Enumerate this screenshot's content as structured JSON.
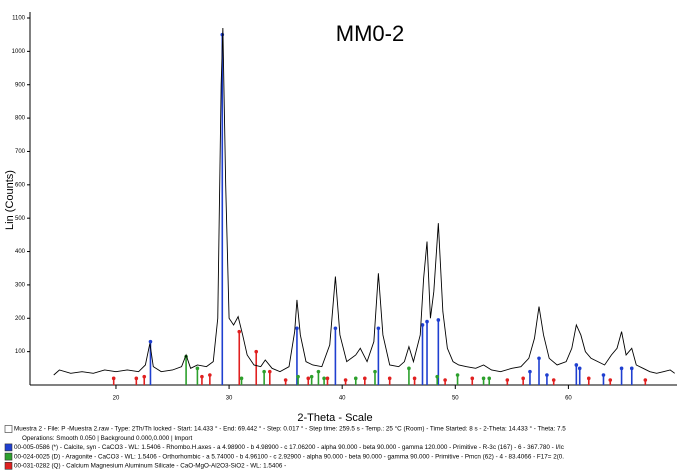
{
  "chart_data": {
    "type": "xrd",
    "title": "MM0-2",
    "x_label": "2-Theta - Scale",
    "y_label": "Lin (Counts)",
    "xlim": [
      12.4,
      69.6
    ],
    "xticks": [
      20,
      30,
      40,
      50,
      60
    ],
    "ylim": [
      0,
      1100
    ],
    "yticks": [
      100,
      200,
      300,
      400,
      500,
      600,
      700,
      800,
      900,
      1000,
      1100
    ],
    "operations": "Operations: Smooth 0.050 | Background 0.000,0.000 | Import",
    "series": [
      {
        "name": "Muestra 2 - File: P -Muestra 2.raw - Type: 2Th/Th locked - Start: 14.433 ° - End: 69.442 ° - Step: 0.017 ° - Step time: 259.5 s - Temp.: 25 °C (Room) - Time Started: 8 s - 2-Theta: 14.433 ° - Theta: 7.5",
        "color": "#000000",
        "x": [
          14.5,
          15,
          16,
          17,
          18,
          19,
          20,
          21,
          22,
          22.6,
          23.0,
          23.3,
          24,
          25,
          25.8,
          26.2,
          26.6,
          27.2,
          28,
          28.6,
          29.0,
          29.3,
          29.45,
          29.7,
          30.0,
          30.4,
          30.8,
          31.2,
          31.6,
          32.2,
          32.8,
          33.2,
          33.8,
          34.5,
          35.3,
          35.8,
          36.0,
          36.3,
          36.8,
          37.4,
          38.2,
          38.9,
          39.4,
          39.8,
          40.4,
          41.2,
          41.6,
          42.2,
          42.8,
          43.2,
          43.6,
          44.2,
          45.0,
          45.5,
          45.9,
          46.3,
          46.9,
          47.2,
          47.5,
          47.8,
          48.1,
          48.5,
          48.9,
          49.3,
          49.8,
          50.3,
          51.0,
          51.8,
          52.5,
          53.2,
          54.0,
          55.0,
          55.8,
          56.5,
          57.0,
          57.4,
          57.8,
          58.3,
          59.0,
          59.8,
          60.3,
          60.7,
          61.1,
          61.5,
          62.0,
          62.6,
          63.2,
          63.8,
          64.3,
          64.7,
          65.1,
          65.6,
          66.0,
          66.6,
          67.2,
          67.8,
          68.4,
          69.0,
          69.4
        ],
        "values": [
          30,
          45,
          35,
          40,
          35,
          45,
          40,
          45,
          40,
          60,
          125,
          55,
          40,
          45,
          55,
          90,
          50,
          60,
          55,
          70,
          200,
          900,
          1070,
          600,
          200,
          180,
          205,
          150,
          90,
          60,
          55,
          75,
          50,
          40,
          55,
          160,
          255,
          150,
          70,
          60,
          55,
          120,
          325,
          150,
          70,
          90,
          110,
          70,
          130,
          335,
          150,
          60,
          55,
          70,
          115,
          70,
          150,
          320,
          430,
          200,
          280,
          485,
          220,
          110,
          70,
          60,
          55,
          50,
          60,
          45,
          40,
          50,
          55,
          80,
          140,
          235,
          150,
          80,
          60,
          70,
          110,
          180,
          150,
          100,
          80,
          70,
          60,
          90,
          110,
          160,
          90,
          110,
          60,
          50,
          40,
          35,
          40,
          45,
          35
        ]
      }
    ],
    "reference_patterns": [
      {
        "name": "00-005-0586 (*) - Calcite, syn - CaCO3 - WL: 1.5406 - Rhombo.H.axes - a 4.98900 - b 4.98900 - c 17.06200 - alpha 90.000 - beta 90.000 - gamma 120.000 - Primitive - R-3c (167) - 6 - 367.780 - I/Ic",
        "color": "#1f3fd0",
        "x": [
          23.05,
          29.4,
          36.0,
          39.4,
          43.2,
          47.1,
          47.5,
          48.5,
          56.6,
          57.4,
          58.1,
          60.7,
          61.0,
          63.1,
          64.7,
          65.6
        ],
        "values": [
          130,
          1050,
          170,
          170,
          170,
          180,
          190,
          195,
          40,
          80,
          30,
          60,
          50,
          30,
          50,
          50
        ]
      },
      {
        "name": "00-024-0025 (D) - Aragonite - CaCO3 - WL: 1.5406 - Orthorhombic - a 5.74000 - b 4.96100 - c 2.92900 - alpha 90.000 - beta 90.000 - gamma 90.000 - Primitive - Pmcn (62) - 4 - 83.4066 - F17= 2(0.",
        "color": "#2ca02c",
        "x": [
          26.2,
          27.2,
          31.1,
          33.1,
          36.1,
          37.3,
          37.9,
          38.4,
          41.2,
          42.9,
          45.9,
          48.4,
          50.2,
          52.5,
          53.0
        ],
        "values": [
          85,
          50,
          20,
          40,
          25,
          25,
          40,
          20,
          20,
          40,
          50,
          25,
          30,
          20,
          20
        ]
      },
      {
        "name": "00-031-0282 (Q) - Calcium Magnesium Aluminum Silicate - CaO-MgO-Al2O3-SiO2 - WL: 1.5406 -",
        "color": "#e02020",
        "x": [
          19.8,
          21.8,
          22.5,
          27.6,
          28.3,
          30.9,
          32.4,
          33.6,
          35.0,
          37.0,
          38.7,
          40.3,
          42.0,
          44.2,
          46.4,
          49.1,
          51.5,
          54.6,
          56.0,
          58.7,
          61.8,
          63.7,
          66.8
        ],
        "values": [
          20,
          20,
          25,
          25,
          30,
          160,
          100,
          40,
          15,
          20,
          20,
          15,
          20,
          20,
          20,
          15,
          20,
          15,
          20,
          15,
          20,
          15,
          15
        ]
      }
    ]
  }
}
